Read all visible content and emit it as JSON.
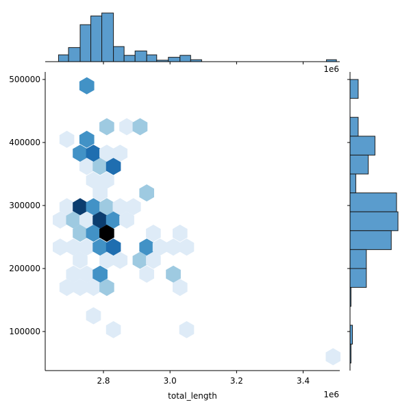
{
  "chart_data": {
    "type": "jointplot-hexbin",
    "xlabel": "total_length",
    "ylabel": "",
    "x_multiplier_label": "1e6",
    "xlim": [
      2.625,
      3.51
    ],
    "ylim": [
      38000,
      512000
    ],
    "x_ticks": [
      {
        "value": 2.8,
        "label": "2.8"
      },
      {
        "value": 3.0,
        "label": "3.0"
      },
      {
        "value": 3.2,
        "label": "3.2"
      },
      {
        "value": 3.4,
        "label": "3.4"
      }
    ],
    "y_ticks": [
      {
        "value": 100000,
        "label": "100000"
      },
      {
        "value": 200000,
        "label": "200000"
      },
      {
        "value": 300000,
        "label": "300000"
      },
      {
        "value": 400000,
        "label": "400000"
      },
      {
        "value": 500000,
        "label": "500000"
      }
    ],
    "colors": {
      "bar_fill": "#5a9ccd",
      "bar_edge": "#1a1a1a",
      "hex_scale": [
        "#deebf7",
        "#9ecae1",
        "#4292c6",
        "#1f6eb0",
        "#0b3d6f",
        "#000000"
      ]
    },
    "hexbins": [
      {
        "x": 2.75,
        "y": 490000,
        "level": 3
      },
      {
        "x": 2.81,
        "y": 425000,
        "level": 2
      },
      {
        "x": 2.87,
        "y": 425000,
        "level": 1
      },
      {
        "x": 2.91,
        "y": 425000,
        "level": 2
      },
      {
        "x": 2.69,
        "y": 405000,
        "level": 1
      },
      {
        "x": 2.75,
        "y": 405000,
        "level": 3
      },
      {
        "x": 2.73,
        "y": 383000,
        "level": 3
      },
      {
        "x": 2.77,
        "y": 383000,
        "level": 4
      },
      {
        "x": 2.81,
        "y": 383000,
        "level": 1
      },
      {
        "x": 2.85,
        "y": 383000,
        "level": 1
      },
      {
        "x": 2.75,
        "y": 362000,
        "level": 1
      },
      {
        "x": 2.79,
        "y": 362000,
        "level": 2
      },
      {
        "x": 2.83,
        "y": 362000,
        "level": 4
      },
      {
        "x": 2.77,
        "y": 340000,
        "level": 1
      },
      {
        "x": 2.81,
        "y": 340000,
        "level": 1
      },
      {
        "x": 2.79,
        "y": 320000,
        "level": 1
      },
      {
        "x": 2.93,
        "y": 320000,
        "level": 2
      },
      {
        "x": 2.69,
        "y": 298000,
        "level": 1
      },
      {
        "x": 2.73,
        "y": 298000,
        "level": 5
      },
      {
        "x": 2.77,
        "y": 298000,
        "level": 3
      },
      {
        "x": 2.81,
        "y": 298000,
        "level": 2
      },
      {
        "x": 2.85,
        "y": 298000,
        "level": 1
      },
      {
        "x": 2.89,
        "y": 298000,
        "level": 1
      },
      {
        "x": 2.67,
        "y": 277000,
        "level": 1
      },
      {
        "x": 2.71,
        "y": 277000,
        "level": 2
      },
      {
        "x": 2.75,
        "y": 277000,
        "level": 1
      },
      {
        "x": 2.79,
        "y": 277000,
        "level": 5
      },
      {
        "x": 2.83,
        "y": 277000,
        "level": 3
      },
      {
        "x": 2.87,
        "y": 277000,
        "level": 1
      },
      {
        "x": 2.73,
        "y": 256000,
        "level": 2
      },
      {
        "x": 2.77,
        "y": 256000,
        "level": 3
      },
      {
        "x": 2.81,
        "y": 256000,
        "level": 6
      },
      {
        "x": 2.95,
        "y": 256000,
        "level": 1
      },
      {
        "x": 3.03,
        "y": 256000,
        "level": 1
      },
      {
        "x": 2.67,
        "y": 234000,
        "level": 1
      },
      {
        "x": 2.71,
        "y": 234000,
        "level": 1
      },
      {
        "x": 2.75,
        "y": 234000,
        "level": 1
      },
      {
        "x": 2.79,
        "y": 234000,
        "level": 3
      },
      {
        "x": 2.83,
        "y": 234000,
        "level": 4
      },
      {
        "x": 2.93,
        "y": 234000,
        "level": 3
      },
      {
        "x": 2.97,
        "y": 234000,
        "level": 1
      },
      {
        "x": 3.01,
        "y": 234000,
        "level": 1
      },
      {
        "x": 3.05,
        "y": 234000,
        "level": 1
      },
      {
        "x": 2.73,
        "y": 213000,
        "level": 1
      },
      {
        "x": 2.81,
        "y": 213000,
        "level": 1
      },
      {
        "x": 2.85,
        "y": 213000,
        "level": 1
      },
      {
        "x": 2.91,
        "y": 213000,
        "level": 2
      },
      {
        "x": 2.95,
        "y": 213000,
        "level": 1
      },
      {
        "x": 2.71,
        "y": 191000,
        "level": 1
      },
      {
        "x": 2.75,
        "y": 191000,
        "level": 1
      },
      {
        "x": 2.79,
        "y": 191000,
        "level": 3
      },
      {
        "x": 2.93,
        "y": 191000,
        "level": 1
      },
      {
        "x": 3.01,
        "y": 191000,
        "level": 2
      },
      {
        "x": 2.69,
        "y": 170000,
        "level": 1
      },
      {
        "x": 2.73,
        "y": 170000,
        "level": 1
      },
      {
        "x": 2.77,
        "y": 170000,
        "level": 1
      },
      {
        "x": 2.81,
        "y": 170000,
        "level": 2
      },
      {
        "x": 3.03,
        "y": 170000,
        "level": 1
      },
      {
        "x": 2.77,
        "y": 125000,
        "level": 1
      },
      {
        "x": 2.83,
        "y": 103000,
        "level": 1
      },
      {
        "x": 3.05,
        "y": 103000,
        "level": 1
      },
      {
        "x": 3.49,
        "y": 60000,
        "level": 1
      }
    ],
    "x_histogram": {
      "bins": [
        [
          2.665,
          2.695,
          0.14
        ],
        [
          2.695,
          2.73,
          0.29
        ],
        [
          2.73,
          2.762,
          0.76
        ],
        [
          2.762,
          2.795,
          0.94
        ],
        [
          2.795,
          2.83,
          1.0
        ],
        [
          2.83,
          2.862,
          0.31
        ],
        [
          2.862,
          2.895,
          0.13
        ],
        [
          2.895,
          2.93,
          0.22
        ],
        [
          2.93,
          2.96,
          0.14
        ],
        [
          2.96,
          2.995,
          0.03
        ],
        [
          2.995,
          3.03,
          0.09
        ],
        [
          3.03,
          3.062,
          0.13
        ],
        [
          3.062,
          3.095,
          0.04
        ],
        [
          3.47,
          3.5,
          0.04
        ]
      ]
    },
    "y_histogram": {
      "bins": [
        [
          470000,
          500000,
          0.17
        ],
        [
          410000,
          440000,
          0.17
        ],
        [
          380000,
          410000,
          0.52
        ],
        [
          350000,
          380000,
          0.38
        ],
        [
          320000,
          350000,
          0.12
        ],
        [
          290000,
          320000,
          0.97
        ],
        [
          260000,
          290000,
          1.0
        ],
        [
          230000,
          260000,
          0.86
        ],
        [
          200000,
          230000,
          0.34
        ],
        [
          170000,
          200000,
          0.34
        ],
        [
          140000,
          170000,
          0.02
        ],
        [
          80000,
          110000,
          0.05
        ],
        [
          50000,
          80000,
          0.02
        ]
      ]
    }
  }
}
